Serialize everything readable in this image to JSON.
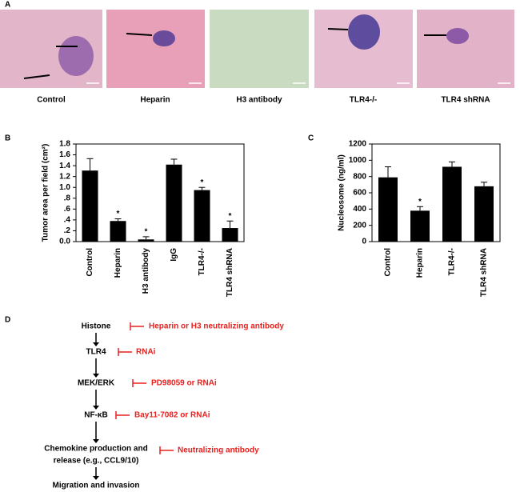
{
  "panel_labels": [
    "A",
    "B",
    "C",
    "D"
  ],
  "panel_a": {
    "images": [
      "Control",
      "Heparin",
      "H3 antibody",
      "TLR4-/-",
      "TLR4 shRNA"
    ]
  },
  "chart_data": [
    {
      "type": "bar",
      "ylabel": "Tumor area per field (cm²)",
      "categories": [
        "Control",
        "Heparin",
        "H3 antibody",
        "IgG",
        "TLR4-/-",
        "TLR4 shRNA"
      ],
      "values": [
        1.31,
        0.38,
        0.04,
        1.42,
        0.95,
        0.25
      ],
      "errors": [
        0.22,
        0.04,
        0.05,
        0.1,
        0.05,
        0.13
      ],
      "significance": [
        null,
        "*",
        "*",
        null,
        "*",
        "*"
      ],
      "color": "#000000",
      "ylim": [
        0,
        1.8
      ],
      "yticks": [
        {
          "value": 0,
          "label": "0.0"
        },
        {
          "value": 0.2,
          "label": ".2"
        },
        {
          "value": 0.4,
          "label": ".4"
        },
        {
          "value": 0.6,
          "label": ".6"
        },
        {
          "value": 0.8,
          "label": ".8"
        },
        {
          "value": 1,
          "label": "1.0"
        },
        1.2,
        1.4,
        1.6,
        1.8
      ],
      "grid": false
    },
    {
      "type": "bar",
      "ylabel": "Nucleosome (ng/ml)",
      "categories": [
        "Control",
        "Heparin",
        "TLR4-/-",
        "TLR4 shRNA"
      ],
      "values": [
        790,
        380,
        920,
        680
      ],
      "errors": [
        130,
        50,
        60,
        50
      ],
      "significance": [
        null,
        "*",
        null,
        null
      ],
      "color": "#000000",
      "ylim": [
        0,
        1200
      ],
      "yticks": [
        0,
        200,
        400,
        600,
        800,
        1000,
        1200
      ],
      "grid": false
    }
  ],
  "pathway": {
    "nodes": [
      "Histone",
      "TLR4",
      "MEK/ERK",
      "NF-κB",
      [
        "Chemokine production and",
        "release (e.g., CCL9/10)"
      ],
      "Migration and invasion"
    ],
    "inhibitors": [
      "Heparin or H3 neutralizing antibody",
      "RNAi",
      "PD98059 or RNAi",
      "Bay11-7082 or RNAi",
      "Neutralizing antibody"
    ]
  }
}
